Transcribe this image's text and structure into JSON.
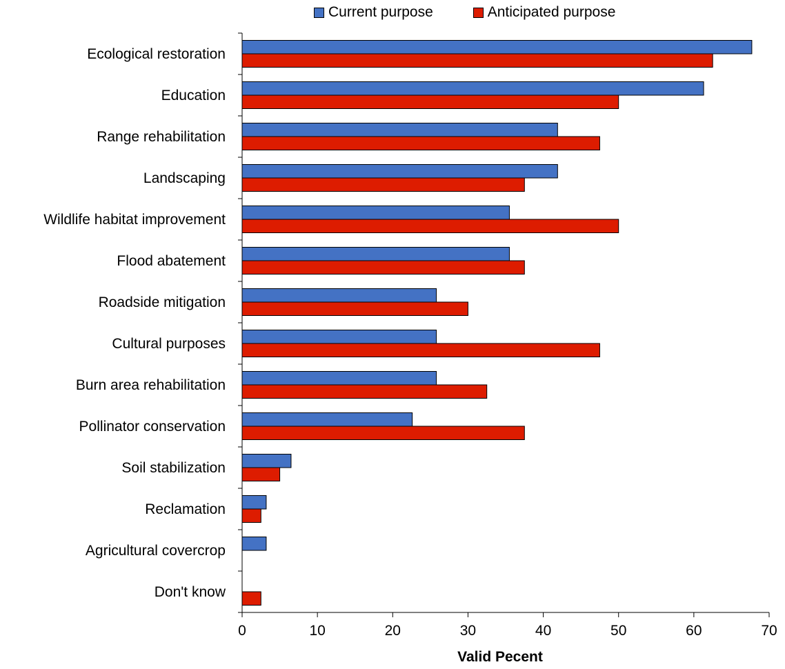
{
  "chart_data": {
    "type": "bar",
    "orientation": "horizontal",
    "title": "",
    "xlabel": "Valid Pecent",
    "ylabel": "",
    "xlim": [
      0,
      70
    ],
    "xticks": [
      0,
      10,
      20,
      30,
      40,
      50,
      60,
      70
    ],
    "grid": false,
    "legend_position": "top",
    "categories": [
      "Ecological restoration",
      "Education",
      "Range rehabilitation",
      "Landscaping",
      "Wildlife habitat improvement",
      "Flood abatement",
      "Roadside mitigation",
      "Cultural purposes",
      "Burn area rehabilitation",
      "Pollinator conservation",
      "Soil stabilization",
      "Reclamation",
      "Agricultural covercrop",
      "Don't know"
    ],
    "series": [
      {
        "name": "Current purpose",
        "color": "#4472C4",
        "values": [
          67.7,
          61.3,
          41.9,
          41.9,
          35.5,
          35.5,
          25.8,
          25.8,
          25.8,
          22.6,
          6.5,
          3.2,
          3.2,
          0
        ]
      },
      {
        "name": "Anticipated purpose",
        "color": "#DD1C00",
        "values": [
          62.5,
          50.0,
          47.5,
          37.5,
          50.0,
          37.5,
          30.0,
          47.5,
          32.5,
          37.5,
          5.0,
          2.5,
          0,
          2.5
        ]
      }
    ]
  }
}
